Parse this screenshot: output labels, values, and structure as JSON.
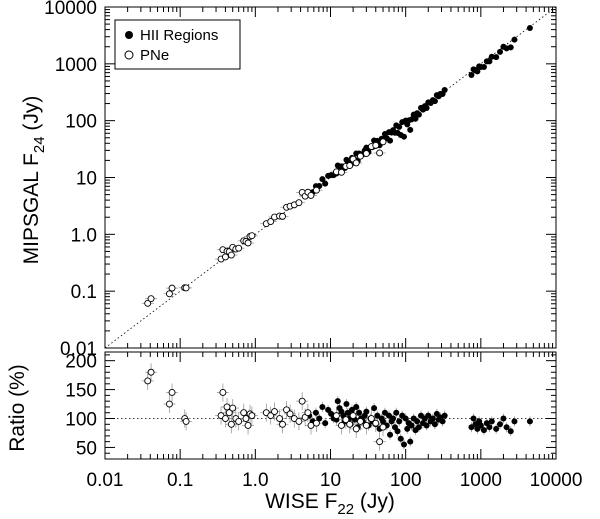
{
  "chart_data": {
    "type": "scatter",
    "x_axis": {
      "label": "WISE F",
      "label_sub": "22",
      "label_suffix": " (Jy)",
      "scale": "log",
      "range": [
        0.01,
        10000
      ],
      "ticks": [
        {
          "value": 0.01,
          "label": "0.01"
        },
        {
          "value": 0.1,
          "label": "0.1"
        },
        {
          "value": 1,
          "label": "1.0"
        },
        {
          "value": 10,
          "label": "10"
        },
        {
          "value": 100,
          "label": "100"
        },
        {
          "value": 1000,
          "label": "1000"
        },
        {
          "value": 10000,
          "label": "10000"
        }
      ]
    },
    "top_panel": {
      "y_label": "MIPSGAL F",
      "y_label_sub": "24",
      "y_label_suffix": " (Jy)",
      "scale": "log",
      "range": [
        0.01,
        10000
      ],
      "ticks": [
        {
          "value": 0.01,
          "label": "0.01"
        },
        {
          "value": 0.1,
          "label": "0.1"
        },
        {
          "value": 1,
          "label": "1.0"
        },
        {
          "value": 10,
          "label": "10"
        },
        {
          "value": 100,
          "label": "100"
        },
        {
          "value": 1000,
          "label": "1000"
        },
        {
          "value": 10000,
          "label": "10000"
        }
      ],
      "reference_line": "y = x",
      "legend": {
        "placement": "top-left",
        "entries": [
          {
            "label": "HII Regions",
            "marker": "filled-circle"
          },
          {
            "label": "PNe",
            "marker": "open-circle"
          }
        ]
      }
    },
    "bottom_panel": {
      "y_label": "Ratio (%)",
      "scale": "linear",
      "range": [
        30,
        215
      ],
      "ticks": [
        {
          "value": 50,
          "label": "50"
        },
        {
          "value": 100,
          "label": "100"
        },
        {
          "value": 150,
          "label": "150"
        },
        {
          "value": 200,
          "label": "200"
        }
      ],
      "reference_line": 100
    },
    "series": [
      {
        "name": "HII Regions",
        "marker": "filled",
        "points": [
          [
            5.2,
            105
          ],
          [
            5.8,
            95
          ],
          [
            6.4,
            110
          ],
          [
            7.1,
            100
          ],
          [
            7.8,
            120
          ],
          [
            8.5,
            92
          ],
          [
            9.3,
            115
          ],
          [
            10.2,
            108
          ],
          [
            11,
            100
          ],
          [
            12,
            98
          ],
          [
            12.5,
            130
          ],
          [
            13.2,
            118
          ],
          [
            14,
            112
          ],
          [
            14.8,
            105
          ],
          [
            15.5,
            95
          ],
          [
            16.3,
            125
          ],
          [
            17,
            110
          ],
          [
            17.8,
            100
          ],
          [
            18.5,
            90
          ],
          [
            19.3,
            115
          ],
          [
            20.2,
            105
          ],
          [
            21,
            98
          ],
          [
            22,
            120
          ],
          [
            23,
            85
          ],
          [
            24,
            110
          ],
          [
            25.5,
            100
          ],
          [
            27,
            95
          ],
          [
            28.5,
            105
          ],
          [
            30,
            112
          ],
          [
            32,
            88
          ],
          [
            34,
            100
          ],
          [
            36,
            95
          ],
          [
            38,
            118
          ],
          [
            40,
            90
          ],
          [
            42,
            105
          ],
          [
            45,
            82
          ],
          [
            48,
            100
          ],
          [
            50,
            95
          ],
          [
            53,
            110
          ],
          [
            56,
            88
          ],
          [
            60,
            105
          ],
          [
            62,
            72
          ],
          [
            65,
            95
          ],
          [
            68,
            100
          ],
          [
            72,
            85
          ],
          [
            75,
            110
          ],
          [
            78,
            78
          ],
          [
            82,
            95
          ],
          [
            86,
            65
          ],
          [
            90,
            105
          ],
          [
            95,
            55
          ],
          [
            100,
            100
          ],
          [
            105,
            82
          ],
          [
            110,
            92
          ],
          [
            115,
            60
          ],
          [
            120,
            88
          ],
          [
            128,
            100
          ],
          [
            135,
            80
          ],
          [
            142,
            95
          ],
          [
            150,
            85
          ],
          [
            160,
            105
          ],
          [
            170,
            92
          ],
          [
            180,
            100
          ],
          [
            190,
            88
          ],
          [
            200,
            105
          ],
          [
            215,
            95
          ],
          [
            230,
            100
          ],
          [
            245,
            90
          ],
          [
            260,
            108
          ],
          [
            275,
            98
          ],
          [
            290,
            102
          ],
          [
            310,
            95
          ],
          [
            330,
            105
          ],
          [
            750,
            85
          ],
          [
            800,
            100
          ],
          [
            850,
            90
          ],
          [
            900,
            82
          ],
          [
            950,
            95
          ],
          [
            1000,
            88
          ],
          [
            1100,
            80
          ],
          [
            1200,
            92
          ],
          [
            1300,
            85
          ],
          [
            1400,
            95
          ],
          [
            1600,
            82
          ],
          [
            1800,
            90
          ],
          [
            2000,
            100
          ],
          [
            2200,
            85
          ],
          [
            2500,
            78
          ],
          [
            2800,
            95
          ],
          [
            4500,
            95
          ]
        ]
      },
      {
        "name": "PNe",
        "marker": "open",
        "points": [
          [
            0.037,
            165
          ],
          [
            0.041,
            180
          ],
          [
            0.072,
            125
          ],
          [
            0.078,
            145
          ],
          [
            0.115,
            100
          ],
          [
            0.12,
            95
          ],
          [
            0.35,
            105
          ],
          [
            0.37,
            145
          ],
          [
            0.4,
            100
          ],
          [
            0.42,
            120
          ],
          [
            0.45,
            110
          ],
          [
            0.48,
            90
          ],
          [
            0.5,
            118
          ],
          [
            0.55,
            100
          ],
          [
            0.6,
            95
          ],
          [
            0.7,
            110
          ],
          [
            0.75,
            100
          ],
          [
            0.8,
            88
          ],
          [
            0.85,
            108
          ],
          [
            0.9,
            105
          ],
          [
            1.4,
            110
          ],
          [
            1.6,
            105
          ],
          [
            1.8,
            112
          ],
          [
            2.1,
            100
          ],
          [
            2.3,
            90
          ],
          [
            2.6,
            115
          ],
          [
            2.9,
            108
          ],
          [
            3.3,
            100
          ],
          [
            3.8,
            95
          ],
          [
            4.2,
            130
          ],
          [
            4.6,
            102
          ],
          [
            5,
            110
          ],
          [
            5.5,
            88
          ],
          [
            6.5,
            92
          ],
          [
            12,
            105
          ],
          [
            14,
            88
          ],
          [
            16,
            98
          ],
          [
            18,
            90
          ],
          [
            20,
            105
          ],
          [
            22,
            82
          ],
          [
            25,
            95
          ],
          [
            30,
            88
          ],
          [
            35,
            100
          ],
          [
            40,
            92
          ],
          [
            45,
            60
          ],
          [
            50,
            85
          ]
        ]
      }
    ]
  }
}
